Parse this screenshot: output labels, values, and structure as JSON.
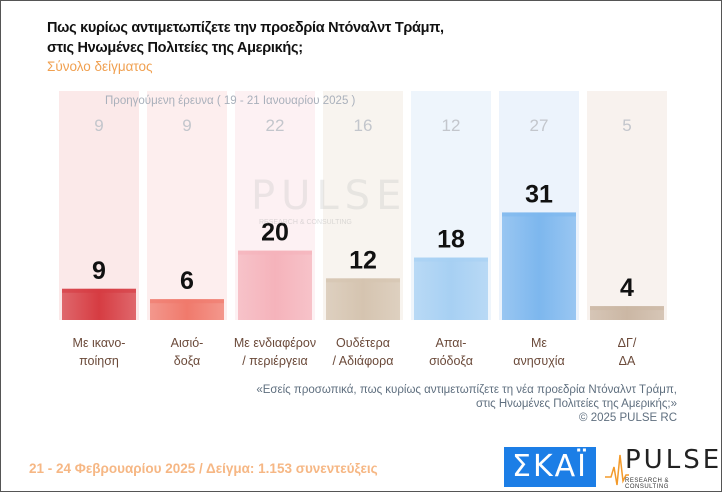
{
  "header": {
    "title_line1": "Πως κυρίως αντιμετωπίζετε την προεδρία Ντόναλντ Τράμπ,",
    "title_line2": "στις Ηνωμένες Πολιτείες της Αμερικής;",
    "subtitle": "Σύνολο δείγματος"
  },
  "chart_data": {
    "type": "bar",
    "categories": [
      [
        "Με ικανο-",
        "ποίηση"
      ],
      [
        "Αισιό-",
        "δοξα"
      ],
      [
        "Με ενδιαφέρον",
        "/ περιέργεια"
      ],
      [
        "Ουδέτερα",
        "/ Αδιάφορα"
      ],
      [
        "Απαι-",
        "σιόδοξα"
      ],
      [
        "Με",
        "ανησυχία"
      ],
      [
        "ΔΓ/",
        "ΔΑ"
      ]
    ],
    "series": [
      {
        "name": "21 - 24 Φεβρουαρίου 2025",
        "values": [
          9,
          6,
          20,
          12,
          18,
          31,
          4
        ]
      },
      {
        "name": "Προηγούμενη έρευνα ( 19 - 21 Ιανουαρίου 2025 )",
        "values": [
          9,
          9,
          22,
          16,
          12,
          27,
          5
        ]
      }
    ],
    "previous_label": "Προηγούμενη έρευνα ( 19 - 21 Ιανουαρίου 2025 )",
    "colors": [
      "#d63c42",
      "#f07a6c",
      "#f5b3bb",
      "#d5c4b0",
      "#a7d0f3",
      "#7db7ee",
      "#cbb7a4"
    ],
    "bg_colors": [
      "#fbe9e9",
      "#fdeeee",
      "#fdf1f3",
      "#f8f4ef",
      "#eef5fc",
      "#ecf3fc",
      "#f8f2ee"
    ],
    "ylim": [
      0,
      66
    ],
    "grid": false
  },
  "note": {
    "line1": "«Εσείς προσωπικά, πως κυρίως αντιμετωπίζετε τη νέα προεδρία Ντόναλντ Τράμπ,",
    "line2": "στις Ηνωμένες Πολιτείες της Αμερικής;»",
    "copyright": "©  2025  PULSE RC"
  },
  "footer": {
    "text": "21 - 24 Φεβρουαρίου 2025  /  Δείγμα:  1.153 συνεντεύξεις"
  },
  "logos": {
    "skai": "ΣΚΑΪ",
    "pulse": "PULSE",
    "pulse_sub": "RESEARCH & CONSULTING"
  }
}
